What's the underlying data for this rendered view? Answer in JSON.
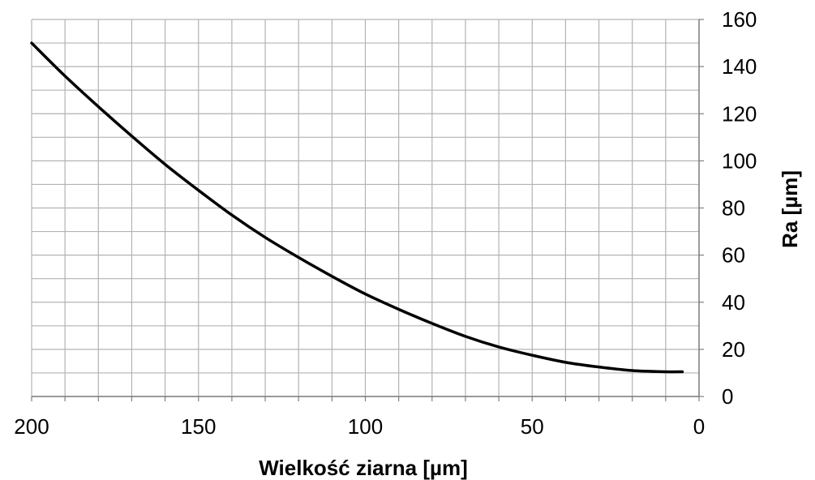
{
  "chart_data": {
    "type": "line",
    "title": "",
    "xlabel": "Wielkość ziarna [µm]",
    "ylabel": "Ra [µm]",
    "x_reversed": true,
    "xlim": [
      0,
      200
    ],
    "ylim": [
      0,
      160
    ],
    "x_ticks": [
      200,
      150,
      100,
      50,
      0
    ],
    "y_ticks": [
      0,
      20,
      40,
      60,
      80,
      100,
      120,
      140,
      160
    ],
    "x_gridlines": [
      200,
      190,
      180,
      170,
      160,
      150,
      140,
      130,
      120,
      110,
      100,
      90,
      80,
      70,
      60,
      50,
      40,
      30,
      20,
      10,
      0
    ],
    "y_gridlines": [
      0,
      10,
      20,
      30,
      40,
      50,
      60,
      70,
      80,
      90,
      100,
      110,
      120,
      130,
      140,
      150,
      160
    ],
    "grid": true,
    "y_axis_position": "right",
    "legend": "none",
    "series": [
      {
        "color": "#000000",
        "x": [
          200,
          190,
          180,
          170,
          160,
          150,
          140,
          130,
          120,
          110,
          100,
          90,
          80,
          70,
          60,
          50,
          40,
          30,
          20,
          10,
          5
        ],
        "y": [
          150,
          136,
          123,
          110.5,
          98.5,
          87.5,
          77,
          67.5,
          59,
          51,
          43.5,
          37,
          31,
          25.5,
          21,
          17.5,
          14.5,
          12.5,
          11,
          10.5,
          10.5
        ]
      }
    ]
  }
}
